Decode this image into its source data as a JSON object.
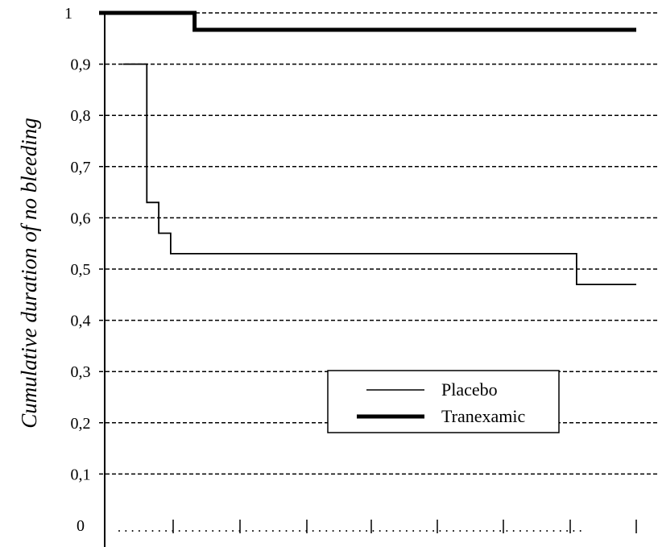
{
  "chart_data": {
    "type": "line",
    "title": "",
    "xlabel": "",
    "ylabel": "Cumulative duration of no bleeding",
    "ylim": [
      0,
      1
    ],
    "y_ticks": [
      "0",
      "0,1",
      "0,2",
      "0,3",
      "0,4",
      "0,5",
      "0,6",
      "0,7",
      "0,8",
      "0,9",
      "1"
    ],
    "grid": true,
    "legend_position": "center-right",
    "series": [
      {
        "name": "Placebo",
        "style": "thin",
        "color": "#000000",
        "steps": [
          [
            0.6,
            0.9
          ],
          [
            0.8,
            0.63
          ],
          [
            1.0,
            0.57
          ],
          [
            1.2,
            0.53
          ],
          [
            8.0,
            0.47
          ],
          [
            9.0,
            0.47
          ]
        ]
      },
      {
        "name": "Tranexamic",
        "style": "thick",
        "color": "#000000",
        "steps": [
          [
            0.0,
            1.0
          ],
          [
            1.6,
            0.967
          ],
          [
            9.0,
            0.967
          ]
        ]
      }
    ]
  }
}
